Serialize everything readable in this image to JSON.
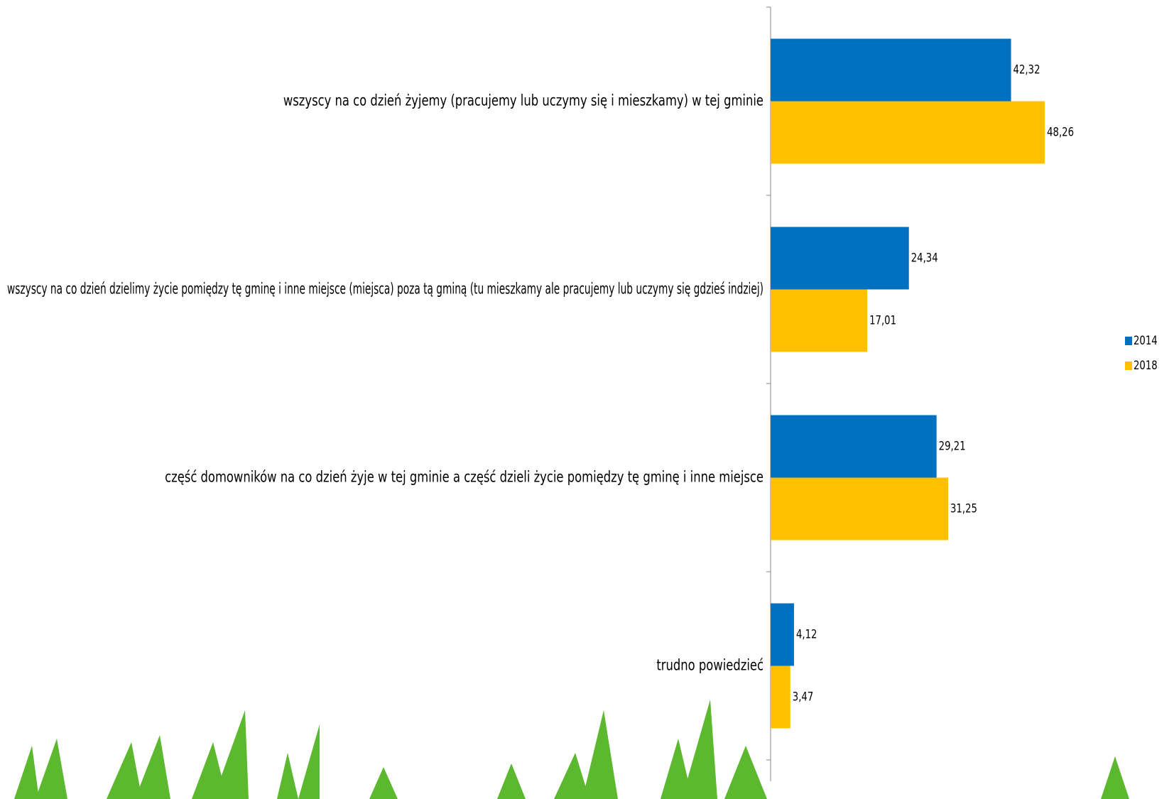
{
  "chart_data": {
    "type": "bar",
    "orientation": "horizontal",
    "categories": [
      "wszyscy na co dzień żyjemy (pracujemy lub uczymy się i mieszkamy) w tej gminie",
      "wszyscy na co dzień dzielimy życie pomiędzy tę gminę i inne miejsce (miejsca) poza tą gminą (tu mieszkamy ale pracujemy lub uczymy się gdzieś indziej)",
      "część domowników na co dzień żyje w tej gminie a część dzieli życie pomiędzy tę gminę i inne miejsce",
      "trudno powiedzieć"
    ],
    "series": [
      {
        "name": "2014",
        "color": "#0070c0",
        "values": [
          42.32,
          24.34,
          29.21,
          4.12
        ],
        "value_labels": [
          "42,32",
          "24,34",
          "29,21",
          "4,12"
        ]
      },
      {
        "name": "2018",
        "color": "#ffc000",
        "values": [
          48.26,
          17.01,
          31.25,
          3.47
        ],
        "value_labels": [
          "48,26",
          "17,01",
          "31,25",
          "3,47"
        ]
      }
    ],
    "xlim": [
      0,
      70
    ],
    "legend": "right"
  }
}
